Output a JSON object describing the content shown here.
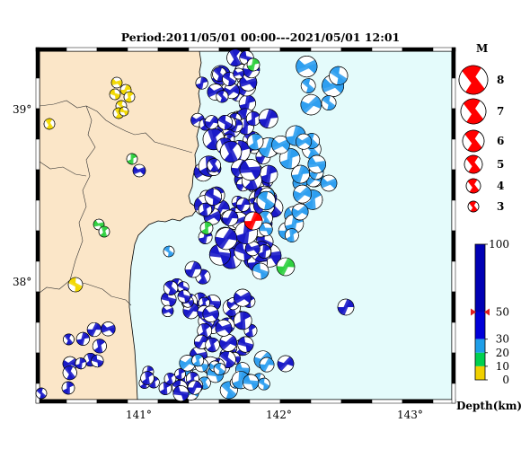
{
  "title": "Period:2011/05/01 00:00---2021/05/01 12:01",
  "map": {
    "lon_ticks": [
      "141°",
      "142°",
      "143°"
    ],
    "lat_ticks": [
      "39°",
      "38°"
    ],
    "colors": {
      "land": "#fbe6c8",
      "sea": "#e4fbfb",
      "frame": "#000000"
    }
  },
  "magnitude_legend": {
    "title": "M",
    "levels": [
      "8",
      "7",
      "6",
      "5",
      "4",
      "3"
    ],
    "color": "#ff0000"
  },
  "depth_scale": {
    "ticks": [
      "100",
      "50",
      "30",
      "20",
      "10",
      "0"
    ],
    "label": "Depth(km)",
    "bands": [
      {
        "range": "50-100",
        "color": "#0000b4"
      },
      {
        "range": "30-50",
        "color": "#0000d8"
      },
      {
        "range": "20-30",
        "color": "#1e9ee8"
      },
      {
        "range": "10-20",
        "color": "#00d050"
      },
      {
        "range": "0-10",
        "color": "#f0d000"
      }
    ],
    "marker_depth": 50
  },
  "focal_mechanisms": {
    "colors": {
      "deep": "#1a1ac8",
      "mid": "#2f9ff0",
      "shallow": "#30d040",
      "very_shallow": "#f2d800",
      "highlight": "#ff0000"
    }
  }
}
